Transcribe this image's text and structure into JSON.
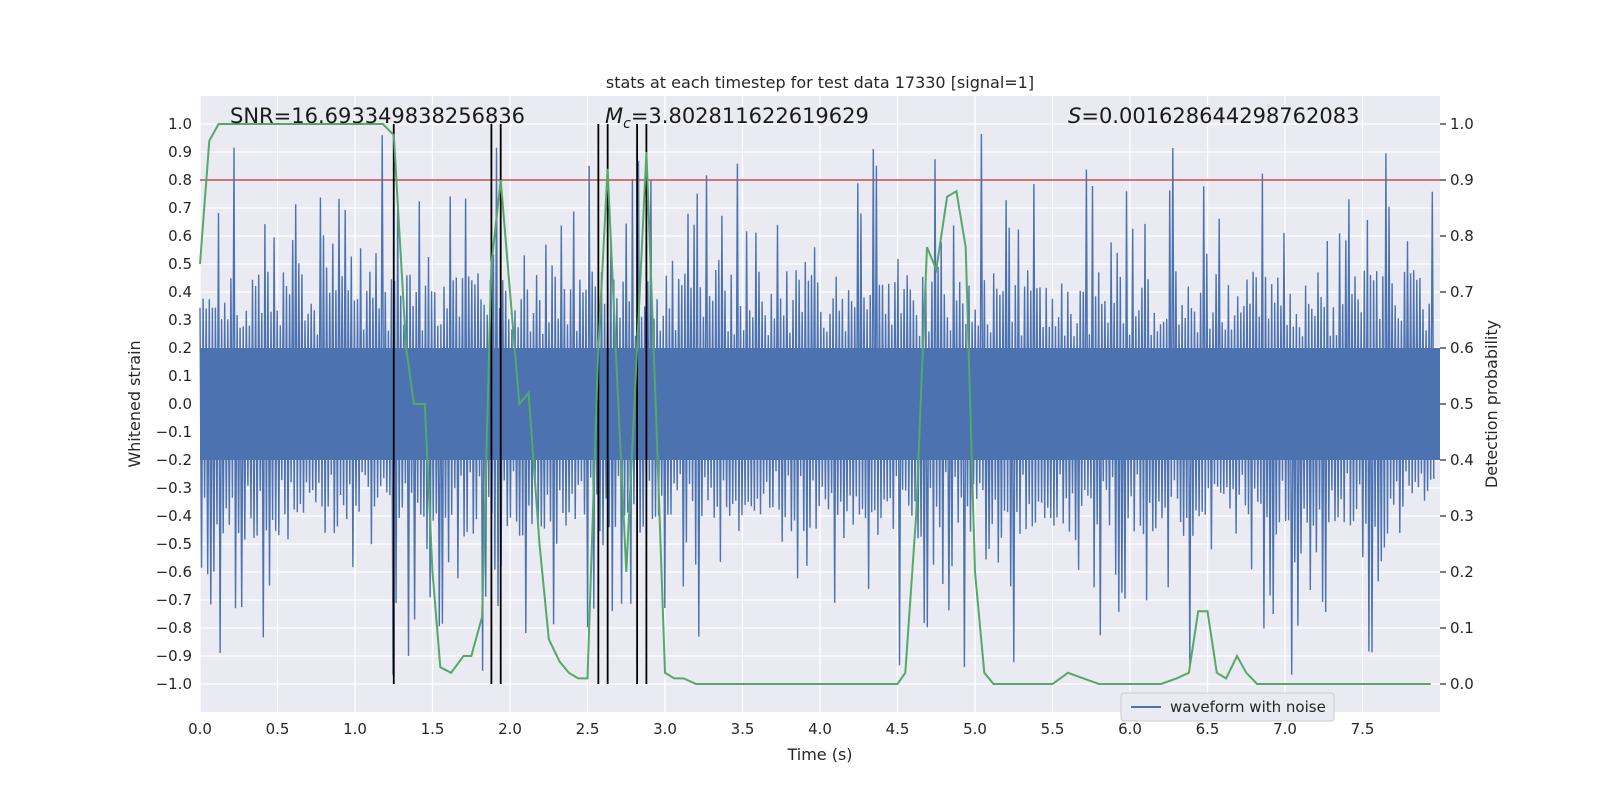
{
  "chart_data": {
    "type": "line",
    "title": "stats at each timestep for test data 17330 [signal=1]",
    "xlabel": "Time (s)",
    "ylabel_left": "Whitened strain",
    "ylabel_right": "Detection probability",
    "xlim": [
      0.0,
      8.0
    ],
    "ylim_left": [
      -1.1,
      1.1
    ],
    "ylim_right": [
      -0.05,
      1.05
    ],
    "x_ticks": [
      "0.0",
      "0.5",
      "1.0",
      "1.5",
      "2.0",
      "2.5",
      "3.0",
      "3.5",
      "4.0",
      "4.5",
      "5.0",
      "5.5",
      "6.0",
      "6.5",
      "7.0",
      "7.5"
    ],
    "y_ticks_left": [
      "1.0",
      "0.9",
      "0.8",
      "0.7",
      "0.6",
      "0.5",
      "0.4",
      "0.3",
      "0.2",
      "0.1",
      "0.0",
      "−0.1",
      "−0.2",
      "−0.3",
      "−0.4",
      "−0.5",
      "−0.6",
      "−0.7",
      "−0.8",
      "−0.9",
      "−1.0"
    ],
    "y_ticks_right": [
      "1.0",
      "0.9",
      "0.8",
      "0.7",
      "0.6",
      "0.5",
      "0.4",
      "0.3",
      "0.2",
      "0.1",
      "0.0"
    ],
    "annotations": {
      "snr": "SNR=16.693349838256836",
      "mc_value": "=3.802811622619629",
      "s_value": "=0.001628644298762083"
    },
    "threshold": 0.9,
    "threshold_color": "#c44e52",
    "vertical_lines_x": [
      1.25,
      1.88,
      1.94,
      2.57,
      2.63,
      2.82,
      2.88
    ],
    "legend": [
      {
        "label": "waveform with noise",
        "color": "#4c72b0"
      }
    ],
    "waveform": {
      "name": "waveform with noise",
      "color": "#4c72b0",
      "base_envelope": 0.4,
      "sample_count": 800
    },
    "detection_probability": {
      "color": "#55a868",
      "x": [
        0.0,
        0.06,
        0.12,
        0.25,
        0.5,
        0.75,
        1.0,
        1.18,
        1.25,
        1.33,
        1.38,
        1.45,
        1.5,
        1.55,
        1.62,
        1.7,
        1.75,
        1.82,
        1.88,
        1.94,
        2.0,
        2.06,
        2.12,
        2.19,
        2.25,
        2.32,
        2.38,
        2.44,
        2.5,
        2.57,
        2.63,
        2.69,
        2.75,
        2.82,
        2.88,
        2.94,
        3.0,
        3.06,
        3.12,
        3.2,
        3.3,
        3.45,
        3.6,
        3.75,
        3.9,
        4.05,
        4.2,
        4.35,
        4.5,
        4.55,
        4.62,
        4.69,
        4.75,
        4.82,
        4.88,
        4.94,
        5.0,
        5.06,
        5.12,
        5.2,
        5.35,
        5.5,
        5.6,
        5.7,
        5.8,
        5.95,
        6.1,
        6.2,
        6.3,
        6.38,
        6.44,
        6.5,
        6.56,
        6.62,
        6.69,
        6.75,
        6.82,
        7.0,
        7.2,
        7.5,
        7.8,
        7.94
      ],
      "y": [
        0.75,
        0.97,
        1.0,
        1.0,
        1.0,
        1.0,
        1.0,
        1.0,
        0.98,
        0.6,
        0.5,
        0.5,
        0.2,
        0.03,
        0.02,
        0.05,
        0.05,
        0.12,
        0.75,
        0.9,
        0.7,
        0.5,
        0.52,
        0.25,
        0.08,
        0.04,
        0.02,
        0.01,
        0.01,
        0.6,
        0.92,
        0.55,
        0.2,
        0.6,
        0.95,
        0.5,
        0.02,
        0.01,
        0.01,
        0.0,
        0.0,
        0.0,
        0.0,
        0.0,
        0.0,
        0.0,
        0.0,
        0.0,
        0.0,
        0.02,
        0.3,
        0.78,
        0.74,
        0.87,
        0.88,
        0.78,
        0.2,
        0.02,
        0.0,
        0.0,
        0.0,
        0.0,
        0.02,
        0.01,
        0.0,
        0.0,
        0.0,
        0.0,
        0.01,
        0.02,
        0.13,
        0.13,
        0.02,
        0.01,
        0.05,
        0.02,
        0.0,
        0.0,
        0.0,
        0.0,
        0.0,
        0.0
      ]
    }
  }
}
